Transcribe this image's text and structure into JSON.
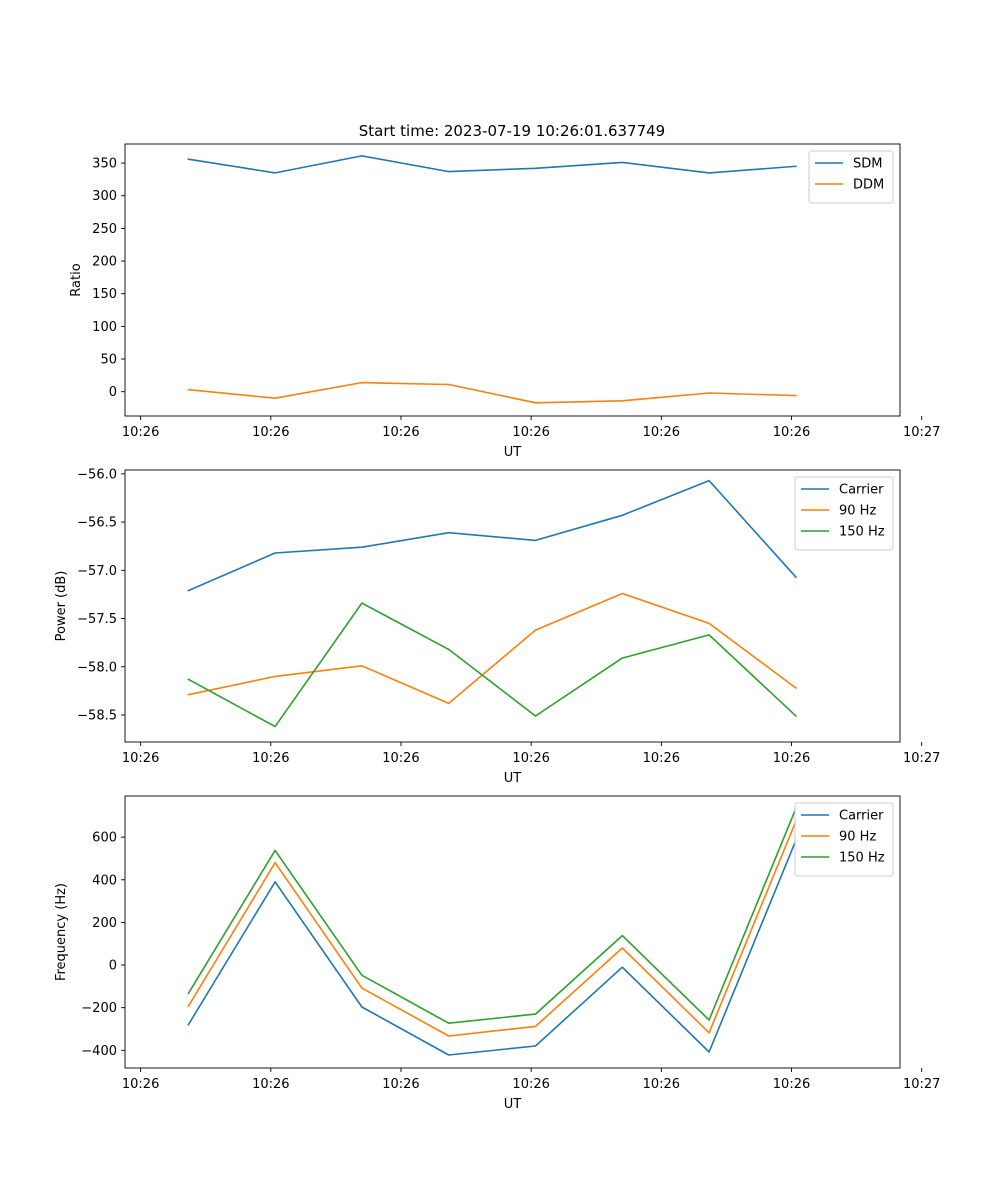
{
  "colors": {
    "c0": "#1f77b4",
    "c1": "#ff7f0e",
    "c2": "#2ca02c"
  },
  "chart_data": [
    {
      "type": "line",
      "title": "Start time: 2023-07-19 10:26:01.637749",
      "xlabel": "UT",
      "ylabel": "Ratio",
      "x": [
        1,
        2,
        3,
        4,
        5,
        6,
        7,
        8
      ],
      "xlim": [
        0.27,
        9.2
      ],
      "xticks": [
        0.45,
        1.95,
        3.45,
        4.95,
        6.45,
        7.95,
        9.45
      ],
      "xtick_labels": [
        "10:26",
        "10:26",
        "10:26",
        "10:26",
        "10:26",
        "10:26",
        "10:27"
      ],
      "ylim": [
        -37.2,
        379.2
      ],
      "yticks": [
        0,
        50,
        100,
        150,
        200,
        250,
        300,
        350
      ],
      "ytick_labels": [
        "0",
        "50",
        "100",
        "150",
        "200",
        "250",
        "300",
        "350"
      ],
      "legend_position": "top-right",
      "series": [
        {
          "name": "SDM",
          "color_key": "c0",
          "values": [
            356,
            335,
            361,
            337,
            342,
            351,
            335,
            345
          ]
        },
        {
          "name": "DDM",
          "color_key": "c1",
          "values": [
            3,
            -10,
            14,
            11,
            -17,
            -14,
            -2,
            -6
          ]
        }
      ]
    },
    {
      "type": "line",
      "title": "",
      "xlabel": "UT",
      "ylabel": "Power (dB)",
      "x": [
        1,
        2,
        3,
        4,
        5,
        6,
        7,
        8
      ],
      "xlim": [
        0.27,
        9.2
      ],
      "xticks": [
        0.45,
        1.95,
        3.45,
        4.95,
        6.45,
        7.95,
        9.45
      ],
      "xtick_labels": [
        "10:26",
        "10:26",
        "10:26",
        "10:26",
        "10:26",
        "10:26",
        "10:27"
      ],
      "ylim": [
        -58.78,
        -55.96
      ],
      "yticks": [
        -58.5,
        -58.0,
        -57.5,
        -57.0,
        -56.5,
        -56.0
      ],
      "ytick_labels": [
        "−58.5",
        "−58.0",
        "−57.5",
        "−57.0",
        "−56.5",
        "−56.0"
      ],
      "legend_position": "top-right",
      "series": [
        {
          "name": "Carrier",
          "color_key": "c0",
          "values": [
            -57.21,
            -56.82,
            -56.76,
            -56.61,
            -56.69,
            -56.43,
            -56.07,
            -57.07
          ]
        },
        {
          "name": "90 Hz",
          "color_key": "c1",
          "values": [
            -58.29,
            -58.1,
            -57.99,
            -58.38,
            -57.62,
            -57.24,
            -57.55,
            -58.22
          ]
        },
        {
          "name": "150 Hz",
          "color_key": "c2",
          "values": [
            -58.13,
            -58.62,
            -57.34,
            -57.82,
            -58.51,
            -57.91,
            -57.67,
            -58.51
          ]
        }
      ]
    },
    {
      "type": "line",
      "title": "",
      "xlabel": "UT",
      "ylabel": "Frequency (Hz)",
      "x": [
        1,
        2,
        3,
        4,
        5,
        6,
        7,
        8
      ],
      "xlim": [
        0.27,
        9.2
      ],
      "xticks": [
        0.45,
        1.95,
        3.45,
        4.95,
        6.45,
        7.95,
        9.45
      ],
      "xtick_labels": [
        "10:26",
        "10:26",
        "10:26",
        "10:26",
        "10:26",
        "10:26",
        "10:27"
      ],
      "ylim": [
        -483,
        793
      ],
      "yticks": [
        -400,
        -200,
        0,
        200,
        400,
        600
      ],
      "ytick_labels": [
        "−400",
        "−200",
        "0",
        "200",
        "400",
        "600"
      ],
      "legend_position": "top-right",
      "series": [
        {
          "name": "Carrier",
          "color_key": "c0",
          "values": [
            -280,
            390,
            -197,
            -422,
            -380,
            -10,
            -408,
            585
          ]
        },
        {
          "name": "90 Hz",
          "color_key": "c1",
          "values": [
            -193,
            480,
            -108,
            -333,
            -288,
            80,
            -318,
            675
          ]
        },
        {
          "name": "150 Hz",
          "color_key": "c2",
          "values": [
            -133,
            538,
            -48,
            -273,
            -230,
            138,
            -258,
            735
          ]
        }
      ]
    }
  ]
}
